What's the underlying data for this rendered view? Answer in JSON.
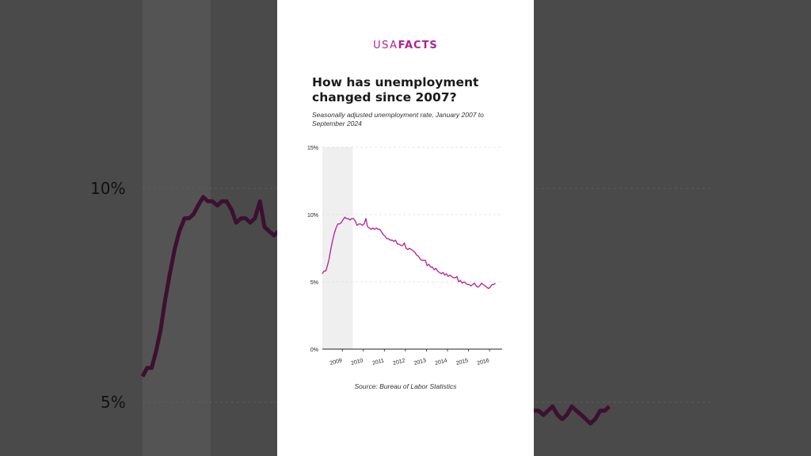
{
  "brand": {
    "prefix": "USA",
    "suffix": "FACTS",
    "color": "#b41d96"
  },
  "title": "How has unemployment changed since 2007?",
  "subtitle": "Seasonally adjusted unemployment rate, January 2007 to September 2024",
  "source": "Source: Bureau of Labor Statistics",
  "background_labels": {
    "upper": "10%",
    "lower": "5%"
  },
  "chart_data": {
    "type": "line",
    "title": "How has unemployment changed since 2007?",
    "xlabel": "",
    "ylabel": "",
    "x_range": [
      2008.05,
      2016.6
    ],
    "ylim": [
      0,
      15
    ],
    "y_ticks": [
      0,
      5,
      10,
      15
    ],
    "y_tick_labels": [
      "0%",
      "5%",
      "10%",
      "15%"
    ],
    "x_ticks": [
      2009,
      2010,
      2011,
      2012,
      2013,
      2014,
      2015,
      2016
    ],
    "x_tick_labels": [
      "2009",
      "2010",
      "2011",
      "2012",
      "2013",
      "2014",
      "2015",
      "2016"
    ],
    "shaded_region": [
      2008.05,
      2009.5
    ],
    "grid": true,
    "line_color": "#b41d96",
    "series": [
      {
        "name": "",
        "x": [
          2008.05,
          2008.13,
          2008.21,
          2008.29,
          2008.37,
          2008.45,
          2008.53,
          2008.62,
          2008.7,
          2008.79,
          2008.87,
          2008.95,
          2009.03,
          2009.12,
          2009.2,
          2009.28,
          2009.37,
          2009.45,
          2009.53,
          2009.62,
          2009.7,
          2009.79,
          2009.87,
          2009.95,
          2010.03,
          2010.12,
          2010.2,
          2010.28,
          2010.37,
          2010.45,
          2010.53,
          2010.62,
          2010.7,
          2010.79,
          2010.87,
          2010.95,
          2011.03,
          2011.12,
          2011.2,
          2011.28,
          2011.37,
          2011.45,
          2011.53,
          2011.62,
          2011.7,
          2011.79,
          2011.87,
          2011.95,
          2012.03,
          2012.12,
          2012.2,
          2012.28,
          2012.37,
          2012.45,
          2012.53,
          2012.62,
          2012.7,
          2012.79,
          2012.87,
          2012.95,
          2013.03,
          2013.12,
          2013.2,
          2013.28,
          2013.37,
          2013.45,
          2013.53,
          2013.62,
          2013.7,
          2013.79,
          2013.87,
          2013.95,
          2014.03,
          2014.12,
          2014.2,
          2014.28,
          2014.37,
          2014.45,
          2014.53,
          2014.62,
          2014.7,
          2014.79,
          2014.87,
          2014.95,
          2015.03,
          2015.12,
          2015.2,
          2015.28,
          2015.37,
          2015.45,
          2015.53,
          2015.62,
          2015.7,
          2015.79,
          2015.87,
          2015.95,
          2016.03,
          2016.12,
          2016.2,
          2016.28
        ],
        "values": [
          5.6,
          5.8,
          5.8,
          6.2,
          6.7,
          7.4,
          8.0,
          8.6,
          9.0,
          9.3,
          9.3,
          9.4,
          9.6,
          9.8,
          9.7,
          9.7,
          9.6,
          9.7,
          9.7,
          9.5,
          9.2,
          9.3,
          9.3,
          9.2,
          9.3,
          9.7,
          9.1,
          9.0,
          8.9,
          9.0,
          8.9,
          9.0,
          8.9,
          8.9,
          8.7,
          8.5,
          8.4,
          8.2,
          8.2,
          8.1,
          8.1,
          8.0,
          8.1,
          7.8,
          7.8,
          7.7,
          7.7,
          7.9,
          7.5,
          7.4,
          7.5,
          7.4,
          7.3,
          7.2,
          7.0,
          6.9,
          6.7,
          6.6,
          6.6,
          6.6,
          6.2,
          6.3,
          6.1,
          6.1,
          5.9,
          6.0,
          5.8,
          5.7,
          5.6,
          5.7,
          5.5,
          5.6,
          5.4,
          5.5,
          5.4,
          5.3,
          5.3,
          5.4,
          5.0,
          5.1,
          4.9,
          5.0,
          4.9,
          4.8,
          4.8,
          4.7,
          4.8,
          4.9,
          4.7,
          4.6,
          4.7,
          4.9,
          4.8,
          4.7,
          4.6,
          4.5,
          4.6,
          4.8,
          4.8,
          4.9
        ]
      }
    ]
  }
}
